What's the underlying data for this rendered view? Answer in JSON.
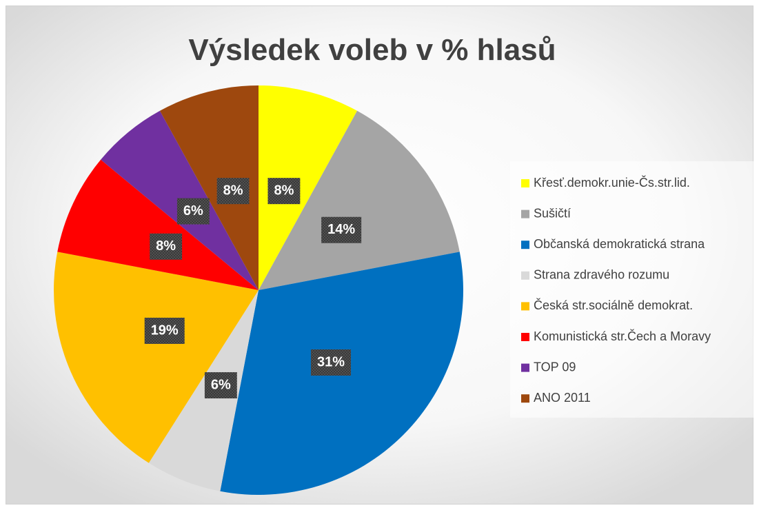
{
  "chart_data": {
    "type": "pie",
    "title": "Výsledek voleb v % hlasů",
    "categories": [
      "Křesť.demokr.unie-Čs.str.lid.",
      "Sušičtí",
      "Občanská demokratická strana",
      "Strana zdravého rozumu",
      "Česká str.sociálně demokrat.",
      "Komunistická str.Čech a Moravy",
      "TOP 09",
      "ANO 2011"
    ],
    "values": [
      8,
      14,
      31,
      6,
      19,
      8,
      6,
      8
    ],
    "value_labels": [
      "8%",
      "14%",
      "31%",
      "6%",
      "19%",
      "8%",
      "6%",
      "8%"
    ],
    "colors": [
      "#ffff00",
      "#a5a5a5",
      "#0070c0",
      "#d9d9d9",
      "#ffc000",
      "#ff0000",
      "#7030a0",
      "#9e480e"
    ],
    "legend": "right"
  }
}
